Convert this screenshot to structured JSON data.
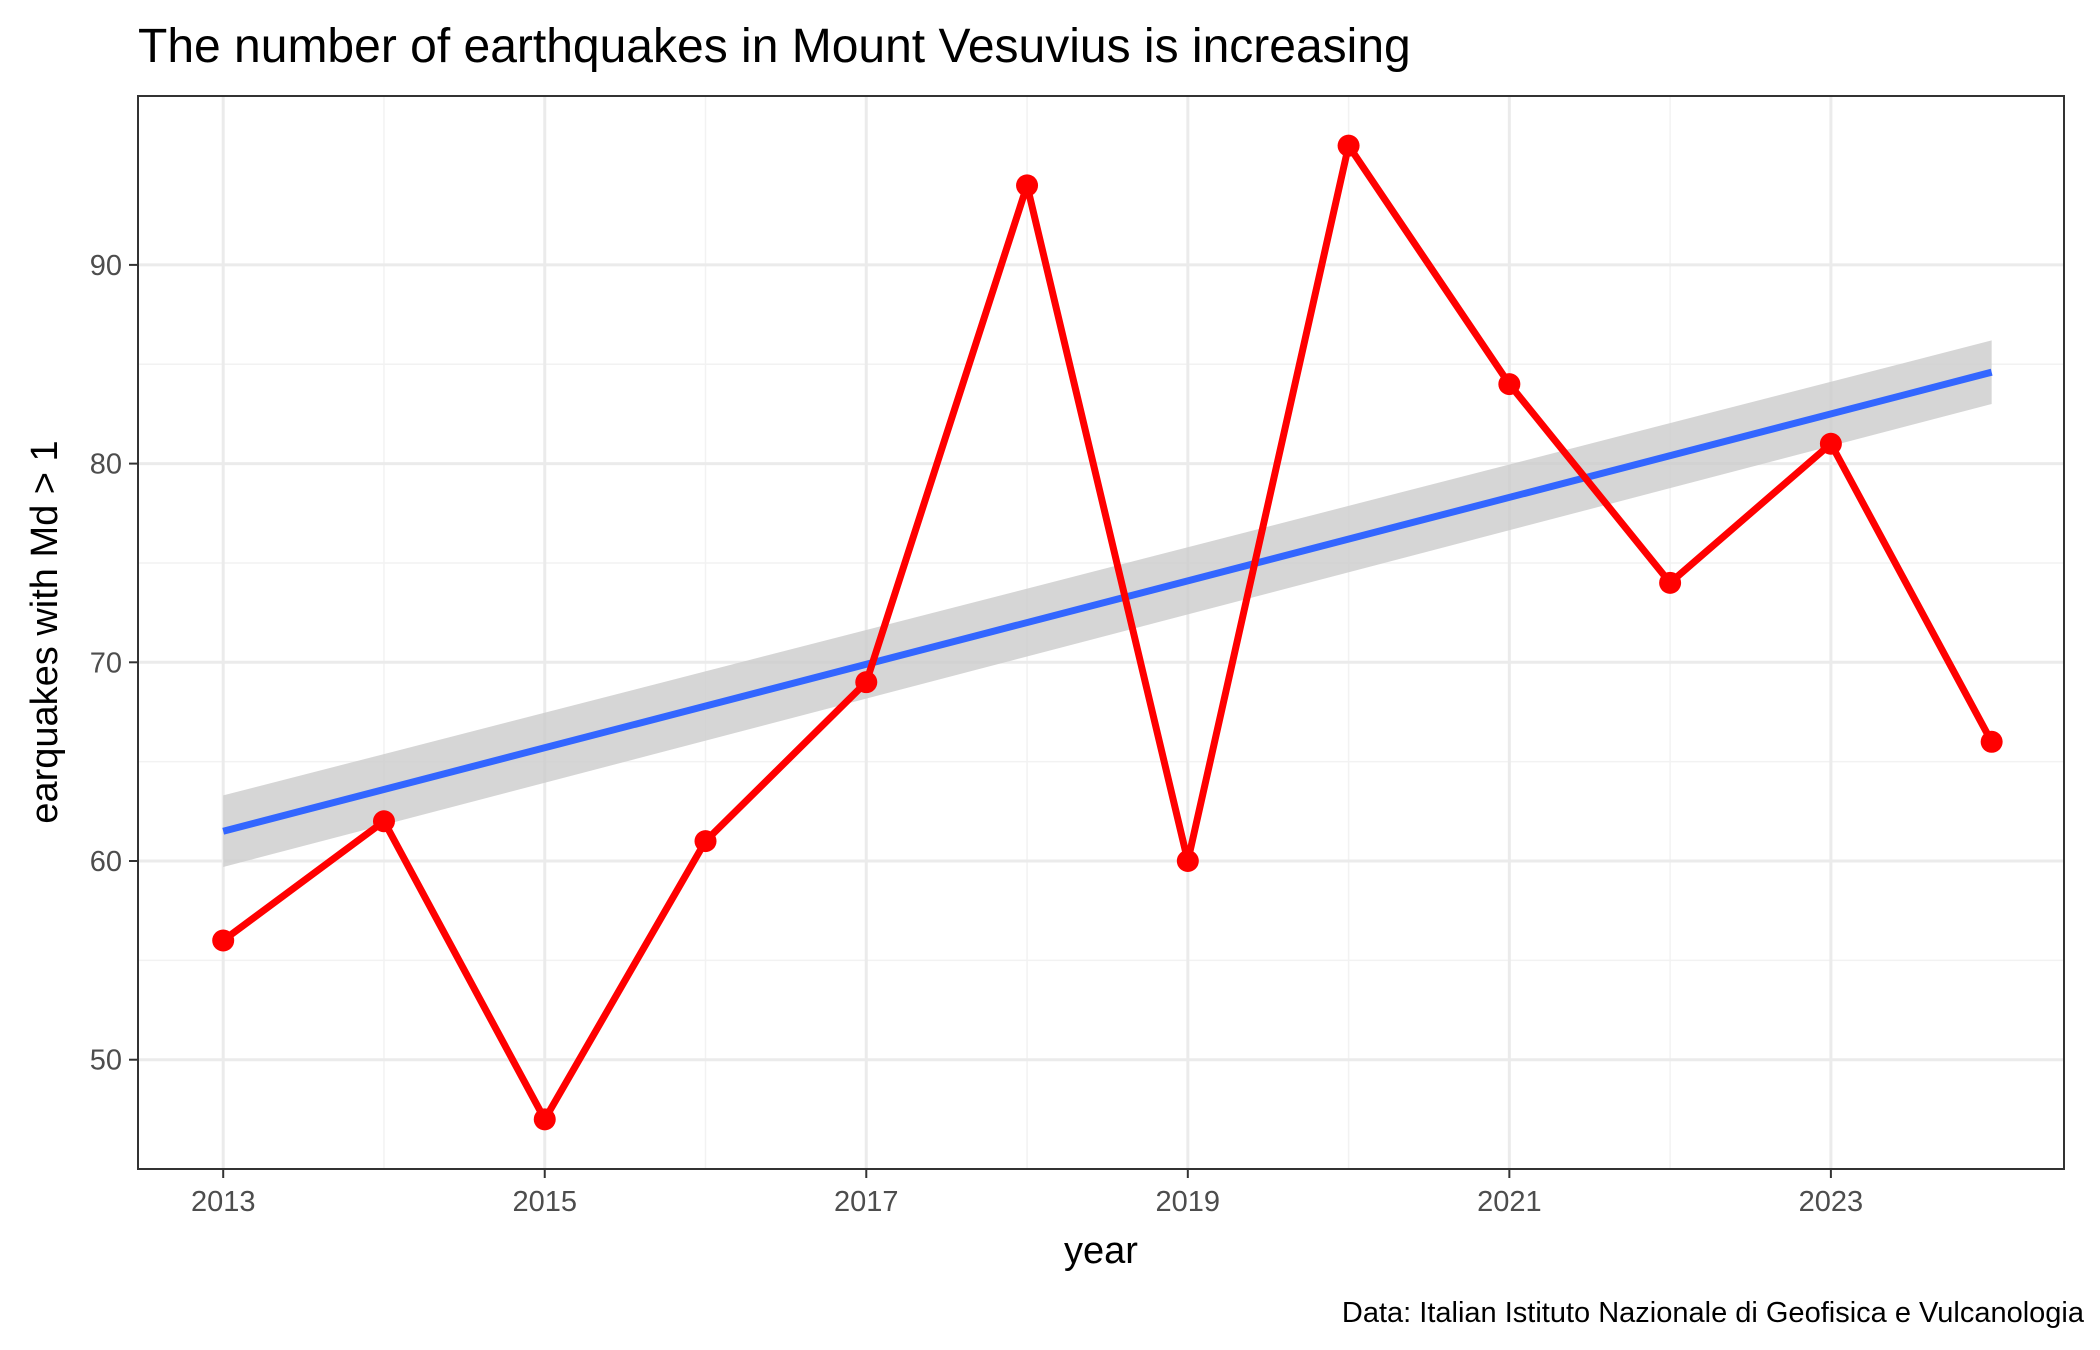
{
  "chart_data": {
    "type": "line",
    "title": "The number of earthquakes in Mount Vesuvius is increasing",
    "xlabel": "year",
    "ylabel": "earquakes with Md > 1",
    "caption": "Data: Italian Istituto Nazionale di Geofisica e Vulcanologia",
    "x": [
      2013,
      2014,
      2015,
      2016,
      2017,
      2018,
      2019,
      2020,
      2021,
      2022,
      2023,
      2024
    ],
    "xticks": [
      2013,
      2015,
      2017,
      2019,
      2021,
      2023
    ],
    "yticks": [
      50,
      60,
      70,
      80,
      90
    ],
    "xlim": [
      2012.47,
      2024.45
    ],
    "ylim": [
      44.5,
      98.5
    ],
    "grid": true,
    "series": [
      {
        "values": [
          56,
          62,
          47,
          61,
          69,
          94,
          60,
          96,
          84,
          74,
          81,
          66
        ],
        "color": "#ff0000"
      }
    ],
    "trend": {
      "type": "linear-fit",
      "start": [
        2013,
        61.5
      ],
      "end": [
        2024,
        84.6
      ],
      "ci_lower": [
        59.7,
        83.0
      ],
      "ci_upper": [
        63.3,
        86.2
      ],
      "color": "#3366ff",
      "band_color": "#cccccc"
    }
  }
}
